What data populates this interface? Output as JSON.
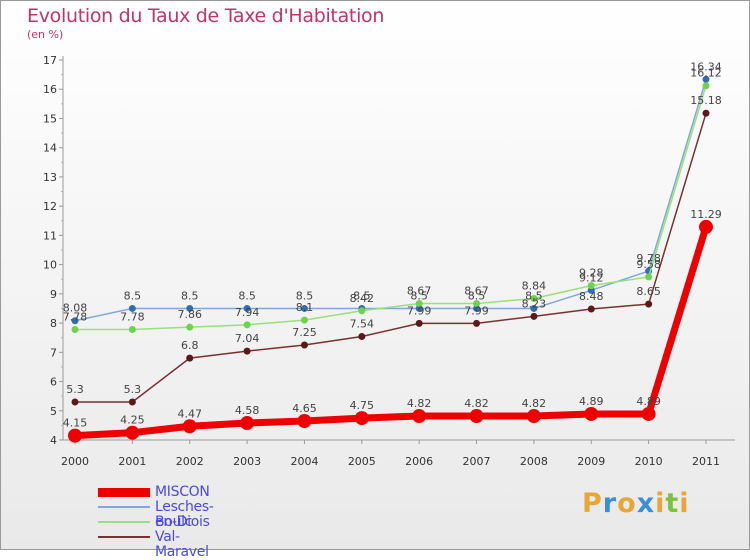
{
  "title": "Evolution du Taux de Taxe d'Habitation",
  "subtitle": "(en %)",
  "logo": {
    "text": "Proxiti",
    "colors": [
      "#e8a735",
      "#3a8fd8",
      "#e8a735",
      "#3a8fd8",
      "#e8a735",
      "#7cc23a",
      "#e8a735"
    ]
  },
  "chart_data": {
    "type": "line",
    "title": "Evolution du Taux de Taxe d'Habitation",
    "ylabel": "(en %)",
    "xlabel": "",
    "x": [
      "2000",
      "2001",
      "2002",
      "2003",
      "2004",
      "2005",
      "2006",
      "2007",
      "2008",
      "2009",
      "2010",
      "2011"
    ],
    "ylim": [
      4,
      17
    ],
    "yticks": [
      4,
      5,
      6,
      7,
      8,
      9,
      10,
      11,
      12,
      13,
      14,
      15,
      16,
      17
    ],
    "grid": false,
    "legend_position": "bottom-left",
    "series": [
      {
        "name": "MISCON",
        "color": "#ee0000",
        "width": 7,
        "marker": 7,
        "values": [
          4.15,
          4.25,
          4.47,
          4.58,
          4.65,
          4.75,
          4.82,
          4.82,
          4.82,
          4.89,
          4.89,
          11.29
        ],
        "labels": [
          "4.15",
          "4.25",
          "4.47",
          "4.58",
          "4.65",
          "4.75",
          "4.82",
          "4.82",
          "4.82",
          "4.89",
          "4.89",
          "11.29"
        ]
      },
      {
        "name": "Lesches-en-Diois",
        "color": "#7fa8d8",
        "width": 1.5,
        "marker": 3.5,
        "markerColor": "#2f6db5",
        "values": [
          8.08,
          8.5,
          8.5,
          8.5,
          8.5,
          8.5,
          8.5,
          8.5,
          8.5,
          9.12,
          9.78,
          16.34
        ],
        "labels": [
          "8.08",
          "8.5",
          "8.5",
          "8.5",
          "8.5",
          "8.5",
          "8.5",
          "8.5",
          "8.5",
          "9.12",
          "9.78",
          "16.34"
        ]
      },
      {
        "name": "Boulc",
        "color": "#99e07a",
        "width": 1.5,
        "marker": 3.5,
        "markerColor": "#6cd44a",
        "values": [
          7.78,
          7.78,
          7.86,
          7.94,
          8.1,
          8.42,
          8.67,
          8.67,
          8.84,
          9.28,
          9.58,
          16.12
        ],
        "labels": [
          "7.78",
          "7.78",
          "7.86",
          "7.94",
          "8.1",
          "8.42",
          "8.67",
          "8.67",
          "8.84",
          "9.28",
          "9.58",
          "16.12"
        ]
      },
      {
        "name": "Val-Maravel",
        "color": "#7a3030",
        "width": 1.5,
        "marker": 3.5,
        "markerColor": "#5a1a1a",
        "values": [
          5.3,
          5.3,
          6.8,
          7.04,
          7.25,
          7.54,
          7.99,
          7.99,
          8.23,
          8.48,
          8.65,
          15.18
        ],
        "labels": [
          "5.3",
          "5.3",
          "6.8",
          "7.04",
          "7.25",
          "7.54",
          "7.99",
          "7.99",
          "8.23",
          "8.48",
          "8.65",
          "15.18"
        ]
      }
    ]
  }
}
